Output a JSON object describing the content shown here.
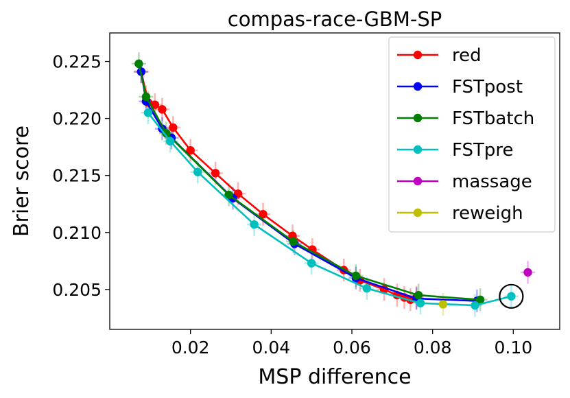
{
  "chart_data": {
    "type": "line",
    "title": "compas-race-GBM-SP",
    "xlabel": "MSP difference",
    "ylabel": "Brier score",
    "xlim": [
      0.0,
      0.1115
    ],
    "ylim": [
      0.2015,
      0.2275
    ],
    "xticks": [
      0.02,
      0.04,
      0.06,
      0.08,
      0.1
    ],
    "xtick_labels": [
      "0.02",
      "0.04",
      "0.06",
      "0.08",
      "0.10"
    ],
    "yticks": [
      0.205,
      0.21,
      0.215,
      0.22,
      0.225
    ],
    "ytick_labels": [
      "0.205",
      "0.210",
      "0.215",
      "0.220",
      "0.225"
    ],
    "grid": false,
    "legend_position": "top-right",
    "series": [
      {
        "name": "red",
        "color": "#ff0000",
        "points": [
          [
            0.0078,
            0.2241
          ],
          [
            0.0095,
            0.2214
          ],
          [
            0.0112,
            0.2212
          ],
          [
            0.013,
            0.2208
          ],
          [
            0.0157,
            0.2192
          ],
          [
            0.02,
            0.2172
          ],
          [
            0.0262,
            0.2152
          ],
          [
            0.0318,
            0.2134
          ],
          [
            0.038,
            0.2116
          ],
          [
            0.0453,
            0.2097
          ],
          [
            0.0502,
            0.2085
          ],
          [
            0.058,
            0.2067
          ],
          [
            0.062,
            0.2058
          ],
          [
            0.068,
            0.205
          ],
          [
            0.0712,
            0.2045
          ],
          [
            0.073,
            0.2043
          ],
          [
            0.0745,
            0.2041
          ],
          [
            0.076,
            0.2043
          ]
        ]
      },
      {
        "name": "FSTpost",
        "color": "#0000ff",
        "points": [
          [
            0.0078,
            0.2241
          ],
          [
            0.009,
            0.2215
          ],
          [
            0.013,
            0.2191
          ],
          [
            0.0153,
            0.2183
          ],
          [
            0.0305,
            0.213
          ],
          [
            0.0458,
            0.209
          ],
          [
            0.061,
            0.206
          ],
          [
            0.076,
            0.2042
          ],
          [
            0.091,
            0.204
          ]
        ]
      },
      {
        "name": "FSTbatch",
        "color": "#008000",
        "points": [
          [
            0.0072,
            0.2248
          ],
          [
            0.009,
            0.2219
          ],
          [
            0.014,
            0.2187
          ],
          [
            0.0295,
            0.2133
          ],
          [
            0.0455,
            0.2092
          ],
          [
            0.061,
            0.2062
          ],
          [
            0.0765,
            0.2045
          ],
          [
            0.0918,
            0.2041
          ]
        ]
      },
      {
        "name": "FSTpre",
        "color": "#00bfbf",
        "points": [
          [
            0.0095,
            0.2205
          ],
          [
            0.015,
            0.218
          ],
          [
            0.0218,
            0.2153
          ],
          [
            0.0358,
            0.2107
          ],
          [
            0.05,
            0.2073
          ],
          [
            0.0637,
            0.2051
          ],
          [
            0.077,
            0.2038
          ],
          [
            0.0905,
            0.2036
          ],
          [
            0.0995,
            0.2044
          ]
        ]
      },
      {
        "name": "massage",
        "color": "#bf00bf",
        "points": [
          [
            0.1036,
            0.2065
          ]
        ]
      },
      {
        "name": "reweigh",
        "color": "#bfbf00",
        "points": [
          [
            0.0826,
            0.2037
          ]
        ]
      }
    ],
    "highlighted_point": {
      "series": "FSTpre",
      "x": 0.0995,
      "y": 0.2044,
      "marker": "black circle"
    }
  }
}
